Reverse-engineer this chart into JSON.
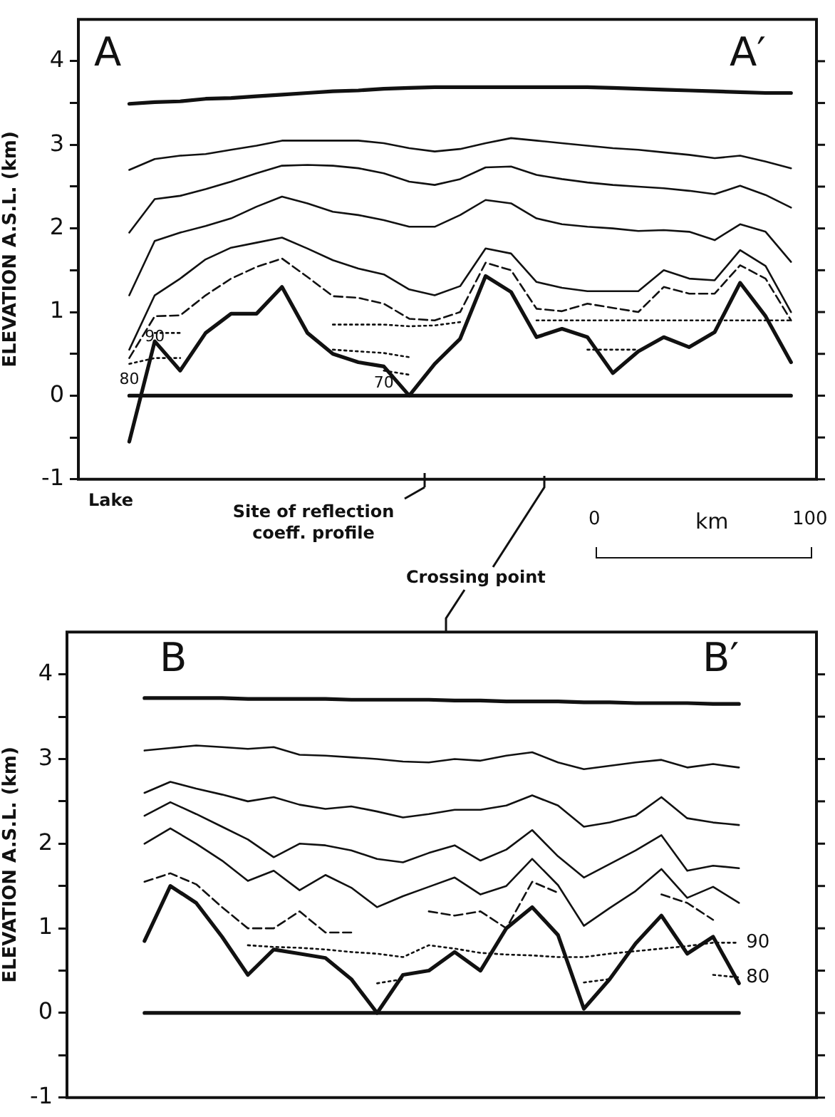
{
  "chart_data": [
    {
      "type": "line",
      "ylabel": "ELEVATION A.S.L. (km)",
      "categories": [
        null,
        null,
        null,
        null,
        null,
        null,
        null,
        null,
        null,
        null,
        null,
        null,
        null,
        null,
        null,
        null,
        null,
        null,
        null,
        null,
        null,
        null,
        null,
        null,
        null,
        null,
        null,
        null,
        null,
        null
      ],
      "ylim": [
        -1,
        4.5
      ],
      "yticks": [
        -1,
        {
          "value": -0.5,
          "label": null
        },
        0,
        {
          "value": 0.5,
          "label": null
        },
        1,
        {
          "value": 1.5,
          "label": null
        },
        2,
        {
          "value": 2.5,
          "label": null
        },
        3,
        {
          "value": 3.5,
          "label": null
        },
        4
      ],
      "tick_labels": "y",
      "annotations": [
        "A",
        "A′",
        "Lake",
        "Site of reflection coeff. profile",
        "Crossing point",
        "0",
        "km",
        "100"
      ],
      "series": [
        {
          "color": "#111111",
          "line_style": "solid",
          "values": [
            null,
            null,
            3.49,
            3.51,
            3.52,
            3.55,
            3.56,
            3.58,
            3.6,
            3.62,
            3.64,
            3.65,
            3.67,
            3.68,
            3.69,
            3.69,
            3.69,
            3.69,
            3.69,
            3.69,
            3.69,
            3.68,
            3.67,
            3.66,
            3.65,
            3.64,
            3.63,
            3.62,
            3.62,
            null
          ]
        },
        {
          "color": "#111111",
          "line_style": "solid",
          "values": [
            null,
            null,
            2.7,
            2.83,
            2.87,
            2.89,
            2.94,
            2.99,
            3.05,
            3.05,
            3.05,
            3.05,
            3.02,
            2.96,
            2.92,
            2.95,
            3.02,
            3.08,
            3.05,
            3.02,
            2.99,
            2.96,
            2.94,
            2.91,
            2.88,
            2.84,
            2.87,
            2.8,
            2.72,
            null
          ]
        },
        {
          "color": "#111111",
          "line_style": "solid",
          "values": [
            null,
            null,
            1.95,
            2.35,
            2.39,
            2.47,
            2.56,
            2.66,
            2.75,
            2.76,
            2.75,
            2.72,
            2.66,
            2.56,
            2.52,
            2.59,
            2.73,
            2.74,
            2.64,
            2.59,
            2.55,
            2.52,
            2.5,
            2.48,
            2.45,
            2.41,
            2.51,
            2.4,
            2.25,
            null
          ]
        },
        {
          "color": "#111111",
          "line_style": "solid",
          "values": [
            null,
            null,
            1.2,
            1.85,
            1.95,
            2.03,
            2.12,
            2.26,
            2.38,
            2.3,
            2.2,
            2.16,
            2.1,
            2.02,
            2.02,
            2.16,
            2.34,
            2.3,
            2.12,
            2.05,
            2.02,
            2.0,
            1.97,
            1.98,
            1.96,
            1.86,
            2.05,
            1.96,
            1.6,
            null
          ]
        },
        {
          "color": "#111111",
          "line_style": "solid",
          "values": [
            null,
            null,
            0.55,
            1.2,
            1.4,
            1.63,
            1.77,
            1.83,
            1.89,
            1.76,
            1.62,
            1.52,
            1.45,
            1.27,
            1.2,
            1.31,
            1.76,
            1.7,
            1.36,
            1.29,
            1.25,
            1.25,
            1.25,
            1.5,
            1.4,
            1.38,
            1.74,
            1.55,
            1.0,
            null
          ]
        },
        {
          "color": "#111111",
          "line_style": "dashed",
          "values": [
            null,
            null,
            0.45,
            0.95,
            0.96,
            1.2,
            1.4,
            1.54,
            1.64,
            1.42,
            1.19,
            1.17,
            1.1,
            0.92,
            0.9,
            1.0,
            1.59,
            1.5,
            1.04,
            1.01,
            1.1,
            1.05,
            1.0,
            1.3,
            1.22,
            1.22,
            1.56,
            1.4,
            0.9,
            null
          ]
        },
        {
          "name": "90",
          "color": "#111111",
          "line_style": "dotted",
          "values": [
            null,
            null,
            null,
            0.75,
            0.75,
            null,
            null,
            null,
            null,
            null,
            0.85,
            0.85,
            0.85,
            0.83,
            0.84,
            0.88,
            null,
            null,
            0.9,
            0.9,
            0.9,
            0.9,
            0.9,
            0.9,
            0.9,
            0.9,
            0.9,
            0.9,
            0.9,
            null
          ]
        },
        {
          "name": "80",
          "color": "#111111",
          "line_style": "dotted",
          "values": [
            null,
            null,
            0.38,
            0.45,
            0.45,
            null,
            null,
            null,
            null,
            null,
            0.55,
            0.53,
            0.51,
            0.46,
            null,
            null,
            null,
            null,
            null,
            null,
            0.55,
            0.55,
            0.55,
            null,
            null,
            null,
            null,
            null,
            null,
            null
          ]
        },
        {
          "name": "70",
          "color": "#111111",
          "line_style": "dotted",
          "values": [
            null,
            null,
            null,
            null,
            null,
            null,
            null,
            null,
            null,
            null,
            null,
            null,
            0.3,
            0.25,
            null,
            null,
            null,
            null,
            null,
            null,
            null,
            null,
            null,
            null,
            null,
            null,
            null,
            null,
            null,
            null
          ]
        },
        {
          "color": "#111111",
          "line_style": "solid",
          "values": [
            null,
            null,
            -0.55,
            0.65,
            0.3,
            0.75,
            0.98,
            0.98,
            1.3,
            0.75,
            0.5,
            0.4,
            0.35,
            0.0,
            0.38,
            0.68,
            1.43,
            1.24,
            0.7,
            0.8,
            0.7,
            0.27,
            0.53,
            0.7,
            0.58,
            0.76,
            1.35,
            0.95,
            0.4,
            null
          ]
        },
        {
          "color": "#111111",
          "line_style": "solid",
          "values": [
            null,
            null,
            0,
            0,
            0,
            0,
            0,
            0,
            0,
            0,
            0,
            0,
            0,
            0,
            0,
            0,
            0,
            0,
            0,
            0,
            0,
            0,
            0,
            0,
            0,
            0,
            0,
            0,
            0,
            null
          ]
        }
      ]
    },
    {
      "type": "line",
      "ylabel": "ELEVATION A.S.L. (km)",
      "categories": [
        null,
        null,
        null,
        null,
        null,
        null,
        null,
        null,
        null,
        null,
        null,
        null,
        null,
        null,
        null,
        null,
        null,
        null,
        null,
        null,
        null,
        null,
        null,
        null,
        null,
        null,
        null,
        null,
        null,
        null
      ],
      "ylim": [
        -1,
        4.5
      ],
      "yticks": [
        -1,
        {
          "value": -0.5,
          "label": null
        },
        0,
        {
          "value": 0.5,
          "label": null
        },
        1,
        {
          "value": 1.5,
          "label": null
        },
        2,
        {
          "value": 2.5,
          "label": null
        },
        3,
        {
          "value": 3.5,
          "label": null
        },
        4
      ],
      "tick_labels": "y",
      "annotations": [
        "B",
        "B′"
      ],
      "series": [
        {
          "color": "#111111",
          "line_style": "solid",
          "values": [
            null,
            null,
            null,
            3.72,
            3.72,
            3.72,
            3.72,
            3.71,
            3.71,
            3.71,
            3.71,
            3.7,
            3.7,
            3.7,
            3.7,
            3.69,
            3.69,
            3.68,
            3.68,
            3.68,
            3.67,
            3.67,
            3.66,
            3.66,
            3.66,
            3.65,
            3.65,
            null,
            null,
            null
          ]
        },
        {
          "color": "#111111",
          "line_style": "solid",
          "values": [
            null,
            null,
            null,
            3.1,
            3.13,
            3.16,
            3.14,
            3.12,
            3.14,
            3.05,
            3.04,
            3.02,
            3.0,
            2.97,
            2.96,
            3.0,
            2.98,
            3.04,
            3.08,
            2.96,
            2.88,
            2.92,
            2.96,
            2.99,
            2.9,
            2.94,
            2.9,
            null,
            null,
            null
          ]
        },
        {
          "color": "#111111",
          "line_style": "solid",
          "values": [
            null,
            null,
            null,
            2.6,
            2.73,
            2.65,
            2.58,
            2.5,
            2.55,
            2.46,
            2.41,
            2.44,
            2.38,
            2.31,
            2.35,
            2.4,
            2.4,
            2.45,
            2.57,
            2.45,
            2.2,
            2.25,
            2.33,
            2.55,
            2.3,
            2.25,
            2.22,
            null,
            null,
            null
          ]
        },
        {
          "color": "#111111",
          "line_style": "solid",
          "values": [
            null,
            null,
            null,
            2.33,
            2.49,
            2.35,
            2.2,
            2.05,
            1.84,
            2.0,
            1.98,
            1.92,
            1.82,
            1.78,
            1.89,
            1.98,
            1.8,
            1.93,
            2.16,
            1.85,
            1.6,
            1.76,
            1.92,
            2.1,
            1.68,
            1.74,
            1.71,
            null,
            null,
            null
          ]
        },
        {
          "color": "#111111",
          "line_style": "solid",
          "values": [
            null,
            null,
            null,
            2.0,
            2.18,
            2.0,
            1.8,
            1.56,
            1.68,
            1.45,
            1.63,
            1.48,
            1.25,
            1.38,
            1.49,
            1.6,
            1.4,
            1.5,
            1.82,
            1.51,
            1.03,
            1.24,
            1.44,
            1.7,
            1.36,
            1.49,
            1.3,
            null,
            null,
            null
          ]
        },
        {
          "color": "#111111",
          "line_style": "dashed",
          "values": [
            null,
            null,
            null,
            1.55,
            1.65,
            1.52,
            1.25,
            1.0,
            1.0,
            1.2,
            0.95,
            0.95,
            null,
            null,
            1.2,
            1.15,
            1.2,
            1.0,
            1.55,
            1.42,
            null,
            null,
            null,
            1.4,
            1.3,
            1.1,
            null,
            null,
            null,
            null
          ]
        },
        {
          "name": "90",
          "color": "#111111",
          "line_style": "dotted",
          "values": [
            null,
            null,
            null,
            null,
            null,
            null,
            null,
            0.8,
            0.78,
            0.77,
            0.75,
            0.72,
            0.7,
            0.66,
            0.8,
            0.76,
            0.71,
            0.69,
            0.68,
            0.66,
            0.66,
            0.7,
            0.73,
            0.76,
            0.79,
            0.83,
            0.83,
            null,
            null,
            null
          ]
        },
        {
          "name": "80",
          "color": "#111111",
          "line_style": "dotted",
          "values": [
            null,
            null,
            null,
            null,
            null,
            null,
            null,
            null,
            null,
            null,
            null,
            null,
            0.35,
            0.4,
            null,
            null,
            null,
            null,
            null,
            null,
            0.36,
            0.4,
            null,
            null,
            null,
            0.45,
            0.42,
            null,
            null,
            null
          ]
        },
        {
          "color": "#111111",
          "line_style": "solid",
          "values": [
            null,
            null,
            null,
            0.85,
            1.5,
            1.3,
            0.9,
            0.45,
            0.75,
            0.7,
            0.65,
            0.4,
            0.0,
            0.45,
            0.5,
            0.72,
            0.5,
            1.0,
            1.25,
            0.92,
            0.05,
            0.4,
            0.82,
            1.15,
            0.7,
            0.9,
            0.35,
            null,
            null,
            null
          ]
        },
        {
          "color": "#111111",
          "line_style": "solid",
          "values": [
            null,
            null,
            null,
            0,
            0,
            0,
            0,
            0,
            0,
            0,
            0,
            0,
            0,
            0,
            0,
            0,
            0,
            0,
            0,
            0,
            0,
            0,
            0,
            0,
            0,
            0,
            0,
            null,
            null,
            null
          ]
        }
      ]
    }
  ]
}
